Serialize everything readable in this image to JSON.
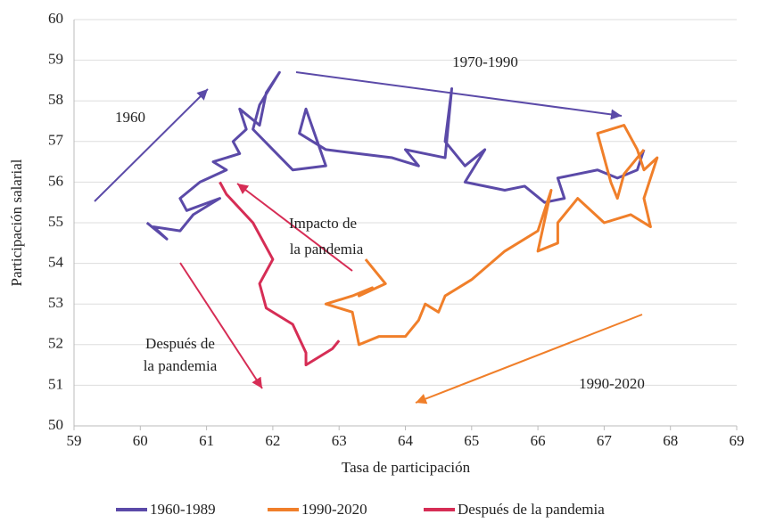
{
  "chart_data": {
    "type": "line",
    "x_label": "Tasa de participación",
    "y_label": "Participación salarial",
    "xlim": [
      59,
      69
    ],
    "xticks": [
      59,
      60,
      61,
      62,
      63,
      64,
      65,
      66,
      67,
      68,
      69
    ],
    "ylim": [
      50,
      60
    ],
    "yticks": [
      50,
      51,
      52,
      53,
      54,
      55,
      56,
      57,
      58,
      59,
      60
    ],
    "grid": true,
    "legend": "bottom",
    "annotations": [
      "1960",
      "1970-1990",
      "Impacto de",
      "la pandemia",
      "Después de",
      "la pandemia",
      "1990-2020"
    ],
    "series": [
      {
        "name": "1960-1989",
        "color": "#5b4aa8",
        "x": [
          60.1,
          60.4,
          60.2,
          60.6,
          60.8,
          61.2,
          60.7,
          60.6,
          60.9,
          61.3,
          61.1,
          61.5,
          61.4,
          61.6,
          61.5,
          61.8,
          61.9,
          62.1,
          61.8,
          61.7,
          62.0,
          62.3,
          62.8,
          62.5,
          62.4,
          62.8,
          63.3,
          63.8,
          64.2,
          64.0,
          64.6,
          64.7,
          64.6,
          64.9,
          65.2,
          64.9,
          65.5,
          65.8,
          66.1,
          66.4,
          66.3,
          66.9,
          67.2,
          67.5,
          67.6
        ],
        "values": [
          55.0,
          54.6,
          54.9,
          54.8,
          55.2,
          55.6,
          55.3,
          55.6,
          56.0,
          56.3,
          56.5,
          56.7,
          57.0,
          57.3,
          57.8,
          57.4,
          58.2,
          58.7,
          57.9,
          57.3,
          56.8,
          56.3,
          56.4,
          57.8,
          57.2,
          56.8,
          56.7,
          56.6,
          56.4,
          56.8,
          56.6,
          58.3,
          57.0,
          56.4,
          56.8,
          56.0,
          55.8,
          55.9,
          55.5,
          55.6,
          56.1,
          56.3,
          56.1,
          56.3,
          56.8
        ]
      },
      {
        "name": "1990-2020",
        "color": "#f07f2a",
        "x": [
          67.6,
          67.3,
          67.2,
          67.1,
          67.0,
          66.9,
          67.3,
          67.5,
          67.6,
          67.8,
          67.6,
          67.7,
          67.4,
          67.0,
          66.6,
          66.3,
          66.3,
          66.0,
          66.2,
          66.0,
          65.5,
          65.0,
          64.6,
          64.5,
          64.3,
          64.2,
          64.0,
          63.6,
          63.3,
          63.2,
          62.8,
          63.2,
          63.5,
          63.3,
          63.7,
          63.4
        ],
        "values": [
          56.8,
          56.2,
          55.6,
          56.0,
          56.6,
          57.2,
          57.4,
          56.8,
          56.3,
          56.6,
          55.6,
          54.9,
          55.2,
          55.0,
          55.6,
          55.0,
          54.5,
          54.3,
          55.8,
          54.8,
          54.3,
          53.6,
          53.2,
          52.8,
          53.0,
          52.6,
          52.2,
          52.2,
          52.0,
          52.8,
          53.0,
          53.2,
          53.4,
          53.2,
          53.5,
          54.1
        ]
      },
      {
        "name": "Después de la pandemia",
        "color": "#d62d55",
        "x": [
          61.2,
          61.3,
          61.7,
          62.0,
          61.8,
          61.9,
          62.3,
          62.5,
          62.5,
          62.7,
          62.9,
          63.0
        ],
        "values": [
          56.0,
          55.7,
          55.0,
          54.1,
          53.5,
          52.9,
          52.5,
          51.8,
          51.5,
          51.7,
          51.9,
          52.1
        ]
      }
    ]
  }
}
